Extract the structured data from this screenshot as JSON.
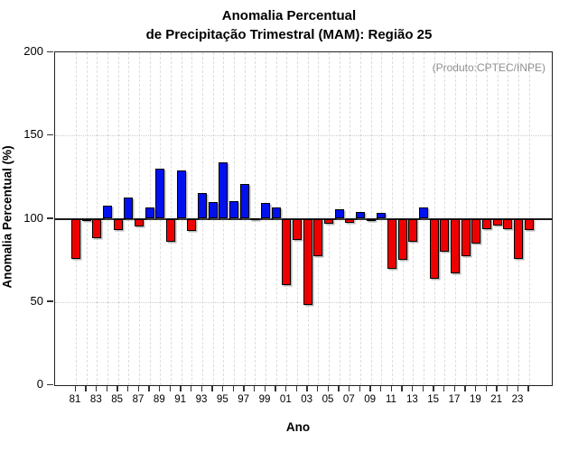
{
  "title": {
    "line1": "Anomalia Percentual",
    "line2": "de Precipitação Trimestral (MAM): Região 25"
  },
  "annotation": "(Produto:CPTEC/INPE)",
  "chart_data": {
    "type": "bar",
    "title": "Anomalia Percentual de Precipitação Trimestral (MAM): Região 25",
    "xlabel": "Ano",
    "ylabel": "Anomalia Percentual (%)",
    "ylim": [
      0,
      200
    ],
    "yticks": [
      0,
      50,
      100,
      150,
      200
    ],
    "grid_y_dotted": [
      50,
      150
    ],
    "baseline": 100,
    "legend_position": "none",
    "categories": [
      "81",
      "82",
      "83",
      "84",
      "85",
      "86",
      "87",
      "88",
      "89",
      "90",
      "91",
      "92",
      "93",
      "94",
      "95",
      "96",
      "97",
      "98",
      "99",
      "00",
      "01",
      "02",
      "03",
      "04",
      "05",
      "06",
      "07",
      "08",
      "09",
      "10",
      "11",
      "12",
      "13",
      "14",
      "15",
      "16",
      "17",
      "18",
      "19",
      "20",
      "21",
      "22",
      "23",
      "24"
    ],
    "x_tick_labels": [
      "81",
      "83",
      "85",
      "87",
      "89",
      "91",
      "93",
      "95",
      "97",
      "99",
      "01",
      "03",
      "05",
      "07",
      "09",
      "11",
      "13",
      "15",
      "17",
      "19",
      "21",
      "23"
    ],
    "values": [
      76,
      99.5,
      88.5,
      108,
      93,
      112.5,
      95.5,
      107,
      130,
      86,
      129,
      92.5,
      115.5,
      110,
      134,
      110.5,
      121,
      100.5,
      109.5,
      107,
      60,
      87,
      48.5,
      77.5,
      97,
      105.5,
      97.5,
      104,
      99,
      103.5,
      70,
      75.5,
      86,
      107,
      64,
      80,
      67,
      77.5,
      85,
      94,
      96,
      93.5,
      76,
      93
    ],
    "colors": {
      "above_baseline": "#0011ee",
      "below_baseline": "#ee0000",
      "bar_border": "#000000",
      "baseline_line": "#1a1a1a",
      "grid": "#d8d8d8",
      "annotation_text": "#909090"
    }
  }
}
